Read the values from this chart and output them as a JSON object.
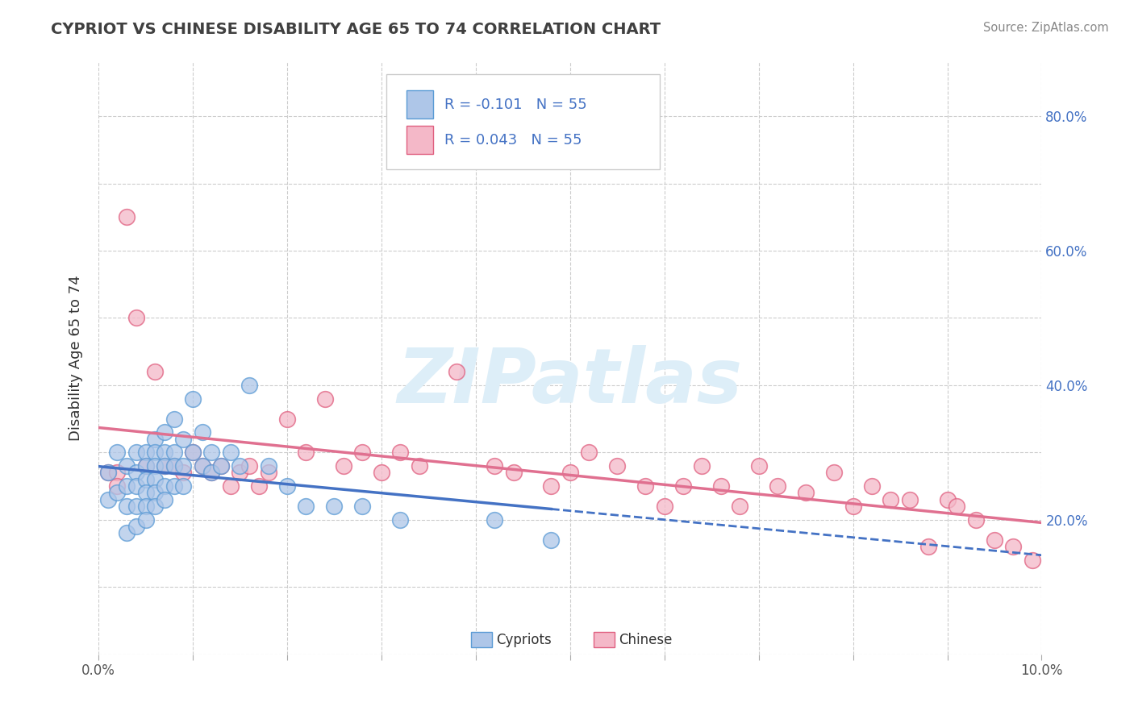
{
  "title": "CYPRIOT VS CHINESE DISABILITY AGE 65 TO 74 CORRELATION CHART",
  "source": "Source: ZipAtlas.com",
  "ylabel": "Disability Age 65 to 74",
  "xlim": [
    0.0,
    0.1
  ],
  "ylim": [
    0.0,
    0.88
  ],
  "xticks": [
    0.0,
    0.01,
    0.02,
    0.03,
    0.04,
    0.05,
    0.06,
    0.07,
    0.08,
    0.09,
    0.1
  ],
  "xtick_labels": [
    "0.0%",
    "",
    "",
    "",
    "",
    "",
    "",
    "",
    "",
    "",
    "10.0%"
  ],
  "ytick_positions": [
    0.0,
    0.1,
    0.2,
    0.3,
    0.4,
    0.5,
    0.6,
    0.7,
    0.8
  ],
  "ytick_labels": [
    "",
    "",
    "20.0%",
    "",
    "40.0%",
    "",
    "60.0%",
    "",
    "80.0%"
  ],
  "R_cypriot": -0.101,
  "N_cypriot": 55,
  "R_chinese": 0.043,
  "N_chinese": 55,
  "color_cypriot_fill": "#aec6e8",
  "color_cypriot_edge": "#5b9bd5",
  "color_chinese_fill": "#f4b8c8",
  "color_chinese_edge": "#e06080",
  "color_cypriot_line": "#4472c4",
  "color_chinese_line": "#e07090",
  "watermark_color": "#ddeef8",
  "background_color": "#ffffff",
  "grid_color": "#cccccc",
  "cypriot_x": [
    0.001,
    0.001,
    0.002,
    0.002,
    0.003,
    0.003,
    0.003,
    0.003,
    0.004,
    0.004,
    0.004,
    0.004,
    0.004,
    0.005,
    0.005,
    0.005,
    0.005,
    0.005,
    0.005,
    0.006,
    0.006,
    0.006,
    0.006,
    0.006,
    0.006,
    0.007,
    0.007,
    0.007,
    0.007,
    0.007,
    0.008,
    0.008,
    0.008,
    0.008,
    0.009,
    0.009,
    0.009,
    0.01,
    0.01,
    0.011,
    0.011,
    0.012,
    0.012,
    0.013,
    0.014,
    0.015,
    0.016,
    0.018,
    0.02,
    0.022,
    0.025,
    0.028,
    0.032,
    0.042,
    0.048
  ],
  "cypriot_y": [
    0.27,
    0.23,
    0.3,
    0.24,
    0.28,
    0.25,
    0.22,
    0.18,
    0.3,
    0.27,
    0.25,
    0.22,
    0.19,
    0.3,
    0.28,
    0.26,
    0.24,
    0.22,
    0.2,
    0.32,
    0.3,
    0.28,
    0.26,
    0.24,
    0.22,
    0.33,
    0.3,
    0.28,
    0.25,
    0.23,
    0.35,
    0.3,
    0.28,
    0.25,
    0.32,
    0.28,
    0.25,
    0.38,
    0.3,
    0.33,
    0.28,
    0.3,
    0.27,
    0.28,
    0.3,
    0.28,
    0.4,
    0.28,
    0.25,
    0.22,
    0.22,
    0.22,
    0.2,
    0.2,
    0.17
  ],
  "chinese_x": [
    0.001,
    0.002,
    0.002,
    0.003,
    0.004,
    0.005,
    0.006,
    0.007,
    0.008,
    0.009,
    0.01,
    0.011,
    0.012,
    0.013,
    0.014,
    0.015,
    0.016,
    0.017,
    0.018,
    0.02,
    0.022,
    0.024,
    0.026,
    0.028,
    0.03,
    0.032,
    0.034,
    0.038,
    0.042,
    0.044,
    0.048,
    0.05,
    0.052,
    0.055,
    0.058,
    0.06,
    0.062,
    0.064,
    0.066,
    0.068,
    0.07,
    0.072,
    0.075,
    0.078,
    0.08,
    0.082,
    0.084,
    0.086,
    0.088,
    0.09,
    0.091,
    0.093,
    0.095,
    0.097,
    0.099
  ],
  "chinese_y": [
    0.27,
    0.27,
    0.25,
    0.65,
    0.5,
    0.28,
    0.42,
    0.28,
    0.28,
    0.27,
    0.3,
    0.28,
    0.27,
    0.28,
    0.25,
    0.27,
    0.28,
    0.25,
    0.27,
    0.35,
    0.3,
    0.38,
    0.28,
    0.3,
    0.27,
    0.3,
    0.28,
    0.42,
    0.28,
    0.27,
    0.25,
    0.27,
    0.3,
    0.28,
    0.25,
    0.22,
    0.25,
    0.28,
    0.25,
    0.22,
    0.28,
    0.25,
    0.24,
    0.27,
    0.22,
    0.25,
    0.23,
    0.23,
    0.16,
    0.23,
    0.22,
    0.2,
    0.17,
    0.16,
    0.14
  ]
}
